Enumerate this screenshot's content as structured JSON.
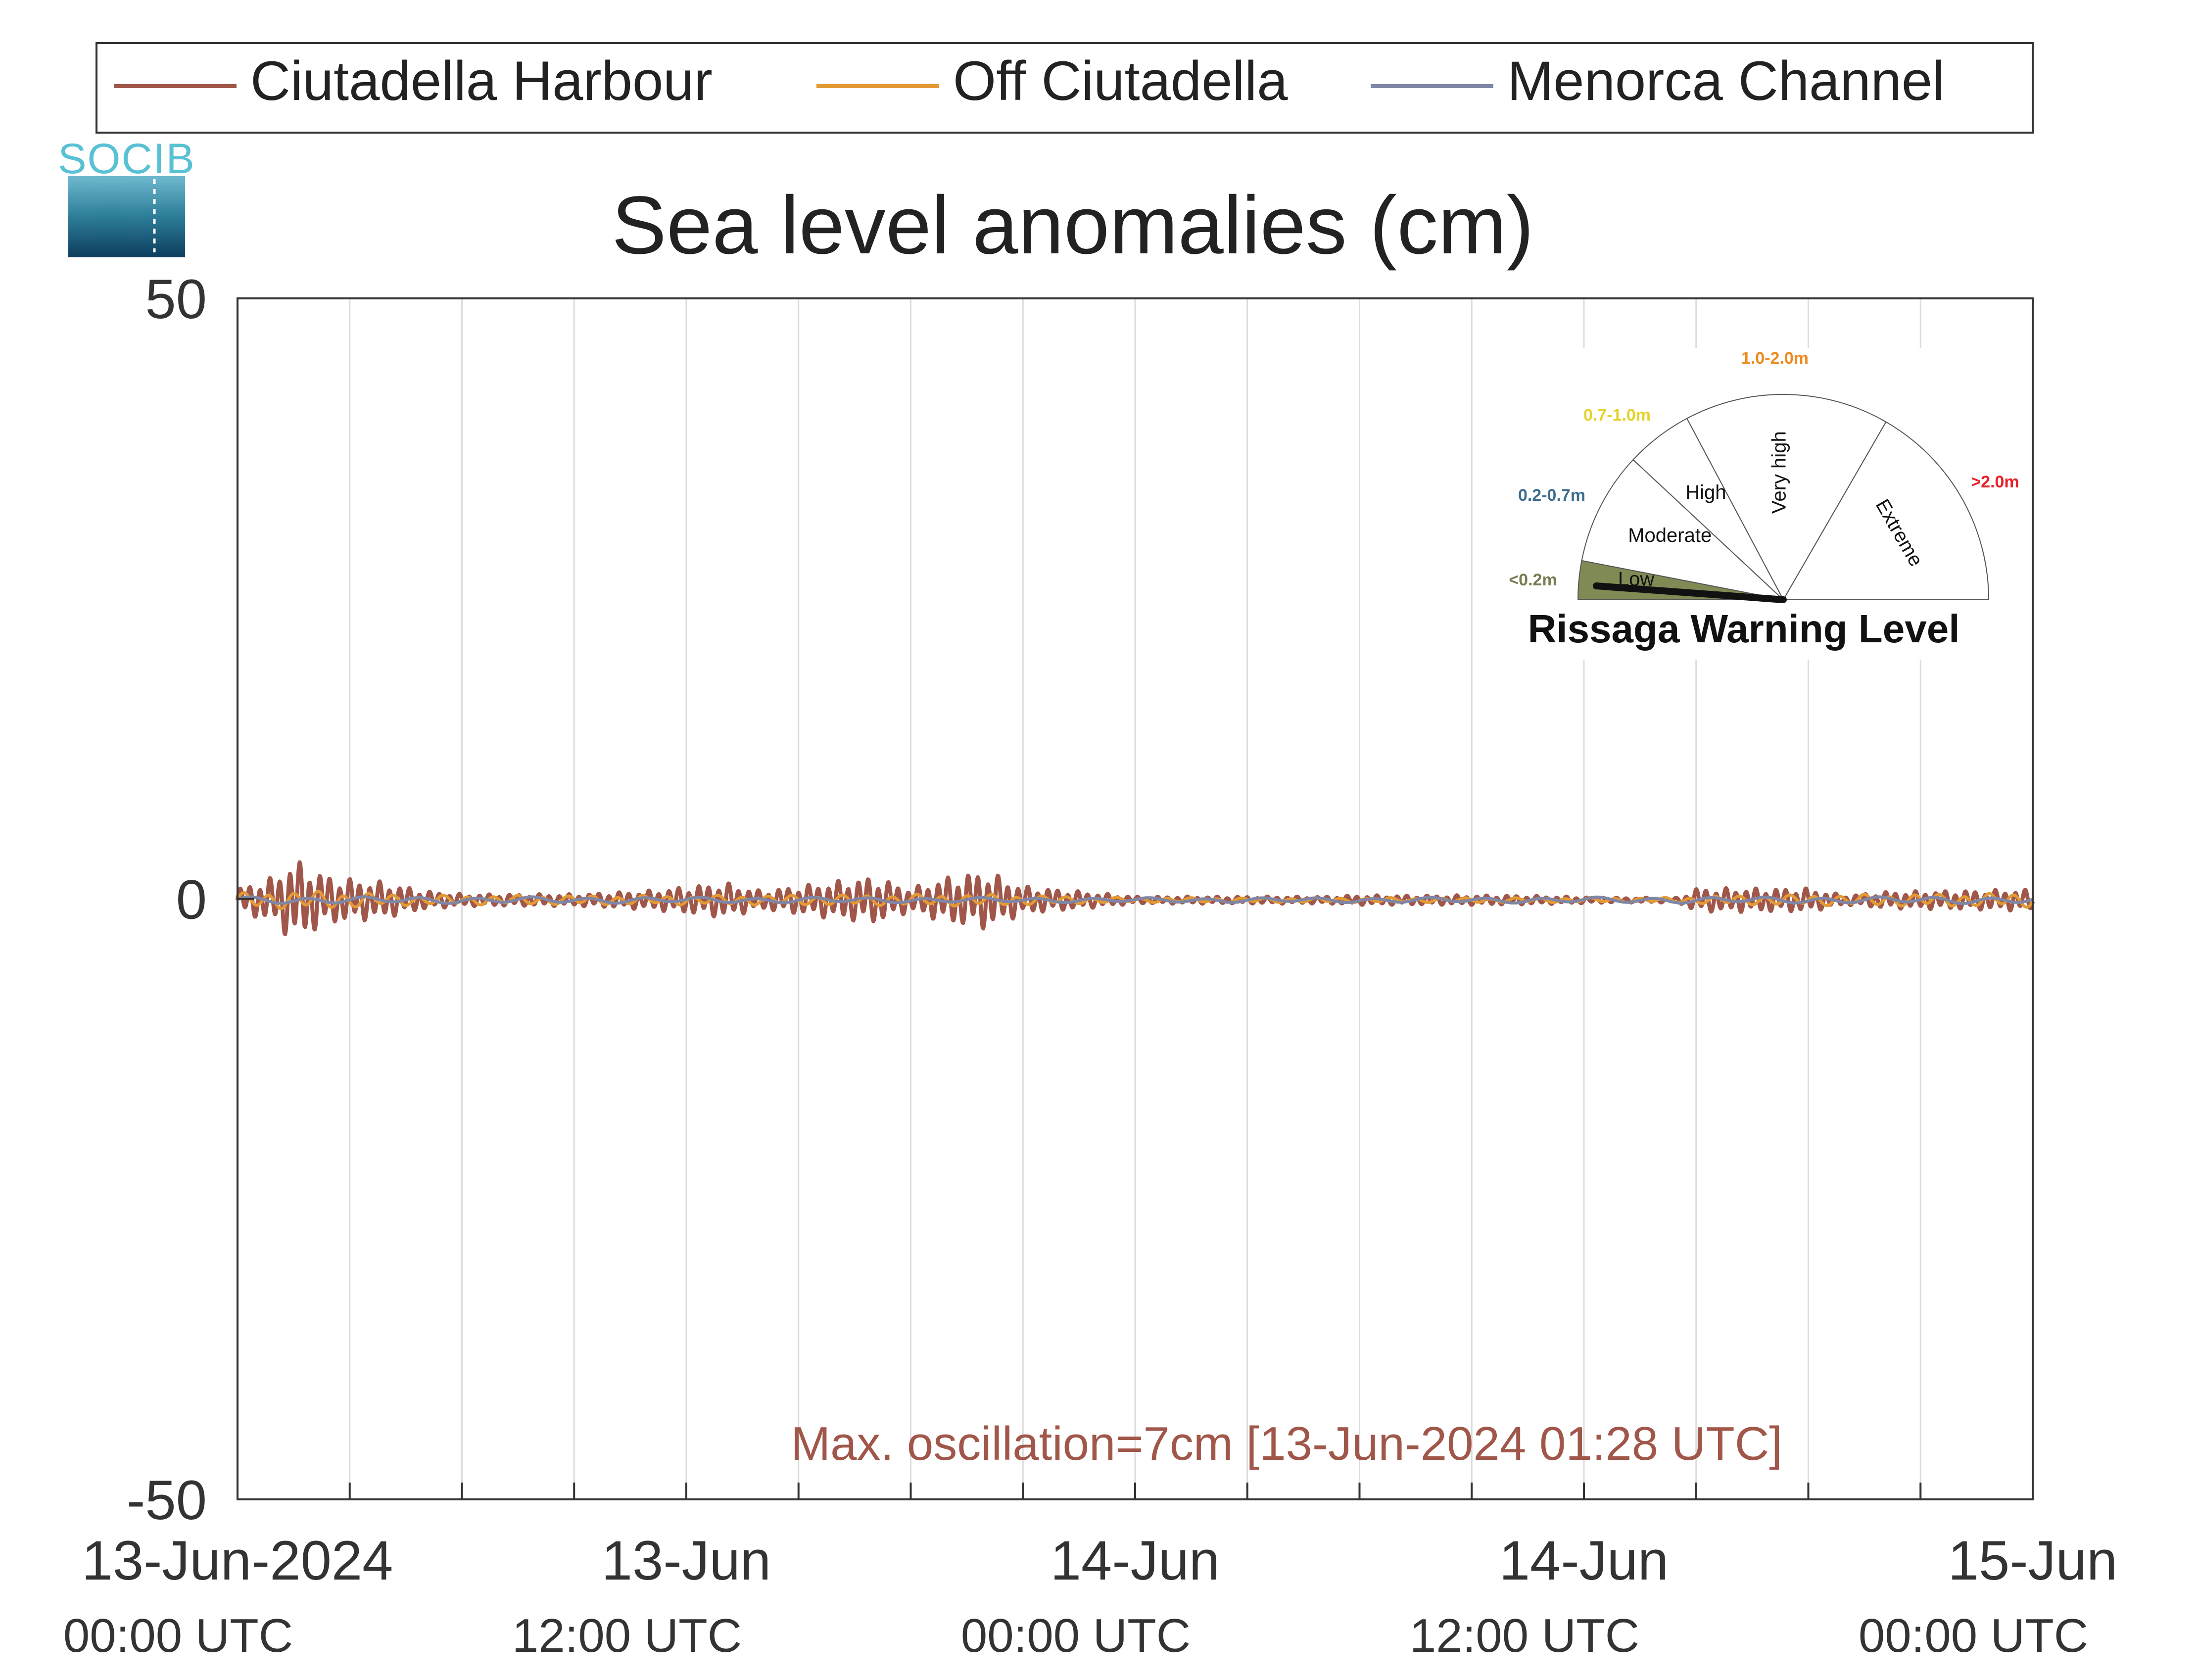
{
  "logo": {
    "text": "SOCIB"
  },
  "legend": {
    "placement": "top",
    "entries": [
      {
        "name": "Ciutadella Harbour",
        "color": "#a0574a"
      },
      {
        "name": "Off Ciutadella",
        "color": "#e39a35"
      },
      {
        "name": "Menorca Channel",
        "color": "#7f86a6"
      }
    ]
  },
  "chart_data": {
    "type": "line",
    "title": "Sea level anomalies (cm)",
    "xlabel": "",
    "ylabel": "",
    "x_range": [
      "2024-06-13T00:00Z",
      "2024-06-15T00:00Z"
    ],
    "ylim": [
      -50,
      50
    ],
    "y_ticks": [
      "50",
      "0",
      "-50"
    ],
    "x_ticks": [
      {
        "t": "2024-06-13T00:00Z",
        "date": "13-Jun-2024",
        "time": "00:00 UTC"
      },
      {
        "t": "2024-06-13T12:00Z",
        "date": "13-Jun",
        "time": "12:00 UTC"
      },
      {
        "t": "2024-06-14T00:00Z",
        "date": "14-Jun",
        "time": "00:00 UTC"
      },
      {
        "t": "2024-06-14T12:00Z",
        "date": "14-Jun",
        "time": "12:00 UTC"
      },
      {
        "t": "2024-06-15T00:00Z",
        "date": "15-Jun",
        "time": "00:00 UTC"
      }
    ],
    "grid": {
      "vertical": true,
      "horizontal": false
    },
    "series": [
      {
        "name": "Ciutadella Harbour",
        "color": "#a0574a",
        "amplitude_envelope": [
          [
            "2024-06-13T00:00Z",
            1.0
          ],
          [
            "2024-06-13T01:00Z",
            2.0
          ],
          [
            "2024-06-13T01:28Z",
            3.5
          ],
          [
            "2024-06-13T02:30Z",
            2.0
          ],
          [
            "2024-06-13T04:00Z",
            1.5
          ],
          [
            "2024-06-13T05:00Z",
            0.8
          ],
          [
            "2024-06-13T06:00Z",
            0.5
          ],
          [
            "2024-06-13T09:00Z",
            0.5
          ],
          [
            "2024-06-13T11:00Z",
            0.8
          ],
          [
            "2024-06-13T13:00Z",
            1.5
          ],
          [
            "2024-06-13T14:00Z",
            0.8
          ],
          [
            "2024-06-13T15:00Z",
            1.2
          ],
          [
            "2024-06-13T17:00Z",
            2.0
          ],
          [
            "2024-06-13T18:00Z",
            1.0
          ],
          [
            "2024-06-13T19:00Z",
            2.0
          ],
          [
            "2024-06-13T20:00Z",
            2.5
          ],
          [
            "2024-06-13T21:00Z",
            1.2
          ],
          [
            "2024-06-13T23:00Z",
            0.6
          ],
          [
            "2024-06-14T00:00Z",
            0.3
          ],
          [
            "2024-06-14T05:00Z",
            0.3
          ],
          [
            "2024-06-14T06:00Z",
            0.4
          ],
          [
            "2024-06-14T10:00Z",
            0.4
          ],
          [
            "2024-06-14T13:00Z",
            0.2
          ],
          [
            "2024-06-14T14:30Z",
            0.2
          ],
          [
            "2024-06-14T15:00Z",
            1.0
          ],
          [
            "2024-06-14T18:00Z",
            1.0
          ],
          [
            "2024-06-14T19:00Z",
            0.4
          ],
          [
            "2024-06-14T20:00Z",
            0.7
          ],
          [
            "2024-06-15T00:00Z",
            0.9
          ]
        ]
      },
      {
        "name": "Off Ciutadella",
        "color": "#e39a35",
        "amplitude_envelope": [
          [
            "2024-06-13T00:00Z",
            0.6
          ],
          [
            "2024-06-13T02:00Z",
            0.8
          ],
          [
            "2024-06-13T05:00Z",
            0.4
          ],
          [
            "2024-06-13T12:00Z",
            0.4
          ],
          [
            "2024-06-13T20:00Z",
            0.5
          ],
          [
            "2024-06-14T00:00Z",
            0.2
          ],
          [
            "2024-06-14T14:00Z",
            0.2
          ],
          [
            "2024-06-14T16:00Z",
            0.4
          ],
          [
            "2024-06-15T00:00Z",
            0.6
          ]
        ]
      },
      {
        "name": "Menorca Channel",
        "color": "#7f86a6",
        "amplitude_envelope": [
          [
            "2024-06-13T00:00Z",
            0.3
          ],
          [
            "2024-06-14T00:00Z",
            0.2
          ],
          [
            "2024-06-15T00:00Z",
            0.3
          ]
        ]
      }
    ],
    "annotation": {
      "text": "Max. oscillation=7cm [13-Jun-2024 01:28 UTC]",
      "color": "#a0574a"
    }
  },
  "gauge": {
    "title": "Rissaga Warning Level",
    "current_level": "Low",
    "sectors": [
      {
        "label": "Low",
        "range": "<0.2m",
        "color": "#7f8a55",
        "active": true,
        "range_color": "#7a7a50"
      },
      {
        "label": "Moderate",
        "range": "0.2-0.7m",
        "color": "#ffffff",
        "active": false,
        "range_color": "#3e6e8e"
      },
      {
        "label": "High",
        "range": "0.7-1.0m",
        "color": "#ffffff",
        "active": false,
        "range_color": "#e6d22e"
      },
      {
        "label": "Very high",
        "range": "1.0-2.0m",
        "color": "#ffffff",
        "active": false,
        "range_color": "#ee8a1e"
      },
      {
        "label": "Extreme",
        "range": ">2.0m",
        "color": "#ffffff",
        "active": false,
        "range_color": "#e8202a"
      }
    ]
  }
}
